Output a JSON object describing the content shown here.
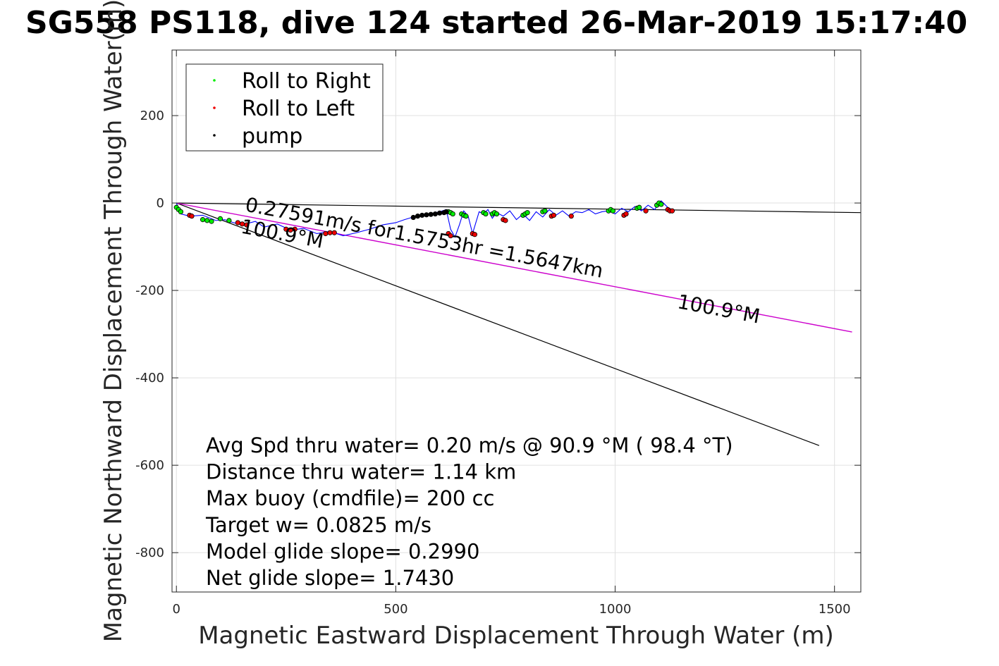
{
  "chart_data": {
    "type": "line",
    "title": "SG558 PS118, dive 124 started 26-Mar-2019 15:17:40",
    "xlabel": "Magnetic Eastward Displacement Through Water (m)",
    "ylabel": "Magnetic Northward Displacement Through Water(m)",
    "xlim": [
      -10,
      1560
    ],
    "ylim": [
      -890,
      350
    ],
    "xticks": [
      0,
      500,
      1000,
      1500
    ],
    "yticks": [
      -800,
      -600,
      -400,
      -200,
      0,
      200
    ],
    "xtick_labels": [
      "0",
      "500",
      "1000",
      "1500"
    ],
    "ytick_labels": [
      "-800",
      "-600",
      "-400",
      "-200",
      "0",
      "200"
    ],
    "grid": true,
    "legend_position": "top-left",
    "legend": [
      {
        "label": "Roll to Right",
        "color": "#00ee00"
      },
      {
        "label": "Roll to Left",
        "color": "#ee0000"
      },
      {
        "label": "pump",
        "color": "#000000"
      }
    ],
    "colors": {
      "track": "#0000ff",
      "heading_line": "#cc00cc",
      "reference_line": "#000000",
      "roll_right": "#00ee00",
      "roll_left": "#ee0000",
      "pump": "#000000"
    },
    "track": {
      "x": [
        0,
        10,
        30,
        60,
        90,
        110,
        130,
        150,
        180,
        200,
        230,
        260,
        290,
        320,
        350,
        380,
        410,
        440,
        470,
        500,
        520,
        540,
        560,
        580,
        600,
        615,
        625,
        635,
        645,
        655,
        665,
        675,
        690,
        700,
        710,
        720,
        730,
        745,
        760,
        775,
        790,
        805,
        820,
        835,
        850,
        865,
        880,
        895,
        910,
        925,
        940,
        955,
        970,
        985,
        1000,
        1015,
        1030,
        1045,
        1060,
        1075,
        1090,
        1105,
        1120,
        1135
      ],
      "y": [
        0,
        -25,
        -30,
        -28,
        -40,
        -38,
        -45,
        -50,
        -42,
        -55,
        -48,
        -62,
        -58,
        -70,
        -65,
        -75,
        -68,
        -60,
        -50,
        -45,
        -38,
        -32,
        -28,
        -25,
        -20,
        -15,
        -60,
        -78,
        -50,
        -18,
        -30,
        -70,
        -20,
        -25,
        -15,
        -35,
        -22,
        -30,
        -18,
        -38,
        -25,
        -40,
        -20,
        -32,
        -15,
        -28,
        -18,
        -30,
        -20,
        -22,
        -15,
        -25,
        -20,
        -18,
        -25,
        -12,
        -20,
        -8,
        -18,
        -5,
        -15,
        5,
        -10,
        -18
      ]
    },
    "reference_lines": [
      {
        "x": [
          0,
          1560
        ],
        "y": [
          0,
          -22
        ]
      },
      {
        "x": [
          0,
          1465
        ],
        "y": [
          0,
          -555
        ]
      }
    ],
    "heading_line": {
      "x": [
        0,
        1540
      ],
      "y": [
        0,
        -295
      ]
    },
    "roll_right_points": {
      "x": [
        0,
        5,
        10,
        60,
        70,
        80,
        100,
        120,
        620,
        625,
        630,
        650,
        655,
        660,
        700,
        705,
        720,
        725,
        730,
        790,
        795,
        800,
        835,
        840,
        985,
        990,
        995,
        1050,
        1055,
        1095,
        1100,
        1105
      ],
      "y": [
        -10,
        -15,
        -20,
        -38,
        -40,
        -42,
        -36,
        -40,
        -20,
        -22,
        -25,
        -25,
        -28,
        -30,
        -22,
        -25,
        -25,
        -22,
        -25,
        -28,
        -25,
        -22,
        -20,
        -18,
        -18,
        -15,
        -18,
        -12,
        -10,
        -5,
        0,
        -3
      ]
    },
    "roll_left_points": {
      "x": [
        30,
        35,
        140,
        150,
        160,
        250,
        260,
        270,
        340,
        350,
        360,
        620,
        625,
        675,
        680,
        745,
        750,
        855,
        860,
        900,
        1020,
        1025,
        1070,
        1120,
        1125,
        1130
      ],
      "y": [
        -28,
        -30,
        -45,
        -48,
        -50,
        -60,
        -62,
        -60,
        -70,
        -68,
        -68,
        -70,
        -75,
        -70,
        -72,
        -38,
        -40,
        -30,
        -28,
        -30,
        -28,
        -25,
        -18,
        -15,
        -18,
        -18
      ]
    },
    "pump_points": {
      "x": [
        540,
        550,
        560,
        570,
        580,
        590,
        600,
        610,
        615
      ],
      "y": [
        -33,
        -30,
        -28,
        -27,
        -26,
        -25,
        -23,
        -22,
        -20
      ]
    },
    "annotations": [
      {
        "text": "0.27591m/s for1.5753hr =1.5647km",
        "x": 155,
        "y": -18,
        "angle": 10.6
      },
      {
        "text": "100.9°M",
        "x": 145,
        "y": -68,
        "angle": 10.6
      },
      {
        "text": "100.9°M",
        "x": 1140,
        "y": -240,
        "angle": 10.6
      }
    ],
    "stats": [
      "Avg Spd thru water=  0.20 m/s @  90.9 °M ( 98.4 °T)",
      "Distance thru water=  1.14 km",
      "Max buoy (cmdfile)= 200 cc",
      "Target w= 0.0825 m/s",
      "Model glide slope= 0.2990",
      "Net glide slope= 1.7430"
    ]
  }
}
